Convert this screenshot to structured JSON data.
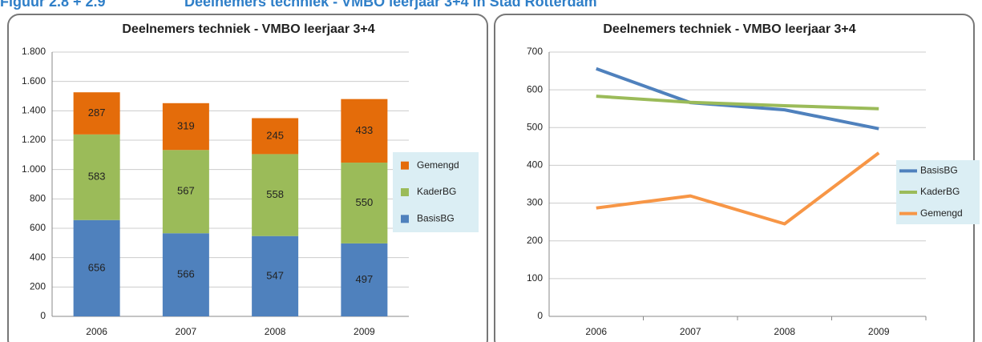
{
  "figure_label": "Figuur 2.8 + 2.9",
  "figure_title": "Deelnemers techniek - VMBO leerjaar 3+4 in Stad Rotterdam",
  "chart_data": [
    {
      "type": "bar",
      "stacked": true,
      "title": "Deelnemers techniek - VMBO leerjaar 3+4",
      "categories": [
        "2006",
        "2007",
        "2008",
        "2009"
      ],
      "series": [
        {
          "name": "BasisBG",
          "color": "#4f81bd",
          "values": [
            656,
            566,
            547,
            497
          ]
        },
        {
          "name": "KaderBG",
          "color": "#9bbb59",
          "values": [
            583,
            567,
            558,
            550
          ]
        },
        {
          "name": "Gemengd",
          "color": "#e46c0a",
          "values": [
            287,
            319,
            245,
            433
          ]
        }
      ],
      "ylim": [
        0,
        1800
      ],
      "yticks": [
        0,
        200,
        400,
        600,
        800,
        {
          "value": 1000,
          "label": "1.000"
        },
        {
          "value": 1200,
          "label": "1.200"
        },
        {
          "value": 1400,
          "label": "1.400"
        },
        {
          "value": 1600,
          "label": "1.600"
        },
        {
          "value": 1800,
          "label": "1.800"
        }
      ],
      "grid": true,
      "legend": "right"
    },
    {
      "type": "line",
      "title": "Deelnemers techniek - VMBO leerjaar 3+4",
      "categories": [
        "2006",
        "2007",
        "2008",
        "2009"
      ],
      "series": [
        {
          "name": "BasisBG",
          "color": "#4f81bd",
          "values": [
            656,
            566,
            547,
            497
          ]
        },
        {
          "name": "KaderBG",
          "color": "#9bbb59",
          "values": [
            583,
            567,
            558,
            550
          ]
        },
        {
          "name": "Gemengd",
          "color": "#f79646",
          "values": [
            287,
            319,
            245,
            433
          ]
        }
      ],
      "ylim": [
        0,
        700
      ],
      "yticks": [
        0,
        100,
        200,
        300,
        400,
        500,
        600,
        700
      ],
      "grid": true,
      "legend": "right"
    }
  ]
}
